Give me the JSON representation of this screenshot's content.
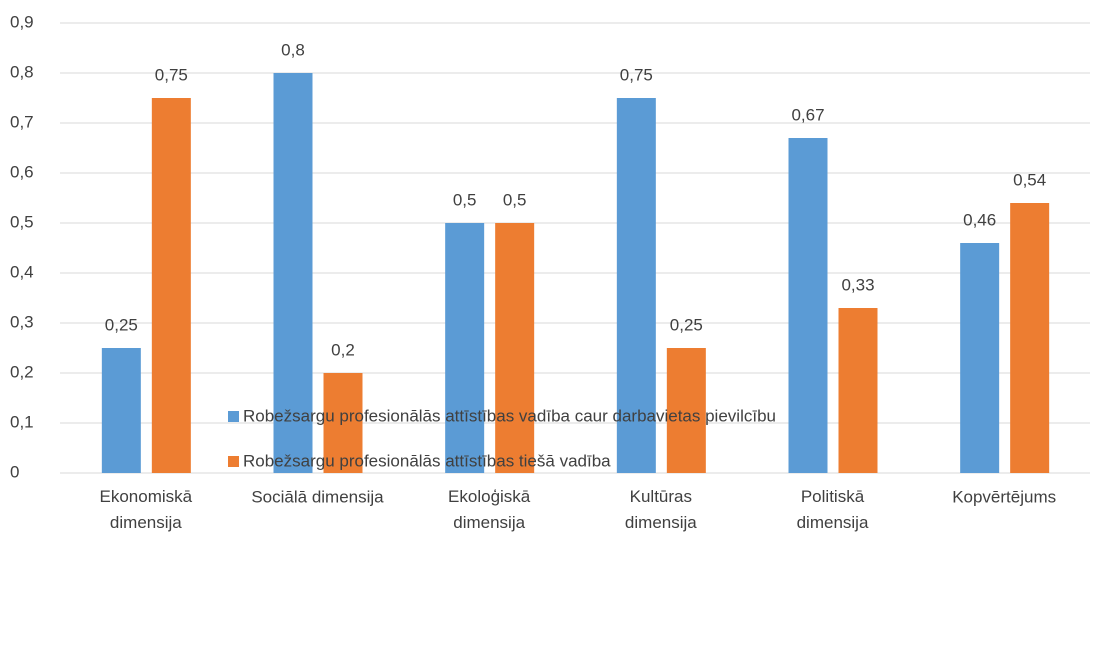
{
  "chart_data": {
    "type": "bar",
    "categories": [
      "Ekonomiskā dimensija",
      "Sociālā dimensija",
      "Ekoloģiskā dimensija",
      "Kultūras dimensija",
      "Politiskā dimensija",
      "Kopvērtējums"
    ],
    "series": [
      {
        "name": "Robežsargu profesionālās attīstības vadība caur darbavietas pievilcību",
        "color": "#5b9bd5",
        "values": [
          0.25,
          0.8,
          0.5,
          0.75,
          0.67,
          0.46
        ],
        "value_labels": [
          "0,25",
          "0,8",
          "0,5",
          "0,75",
          "0,67",
          "0,46"
        ]
      },
      {
        "name": "Robežsargu profesionālās attīstības tiešā vadība",
        "color": "#ed7d31",
        "values": [
          0.75,
          0.2,
          0.5,
          0.25,
          0.33,
          0.54
        ],
        "value_labels": [
          "0,75",
          "0,2",
          "0,5",
          "0,25",
          "0,33",
          "0,54"
        ]
      }
    ],
    "ylim": [
      0,
      0.9
    ],
    "yticks": [
      0,
      {
        "value": 0.1,
        "label": "0,1"
      },
      {
        "value": 0.2,
        "label": "0,2"
      },
      {
        "value": 0.3,
        "label": "0,3"
      },
      {
        "value": 0.4,
        "label": "0,4"
      },
      {
        "value": 0.5,
        "label": "0,5"
      },
      {
        "value": 0.6,
        "label": "0,6"
      },
      {
        "value": 0.7,
        "label": "0,7"
      },
      {
        "value": 0.8,
        "label": "0,8"
      },
      {
        "value": 0.9,
        "label": "0,9"
      }
    ],
    "grid": true,
    "legend": "bottom"
  }
}
